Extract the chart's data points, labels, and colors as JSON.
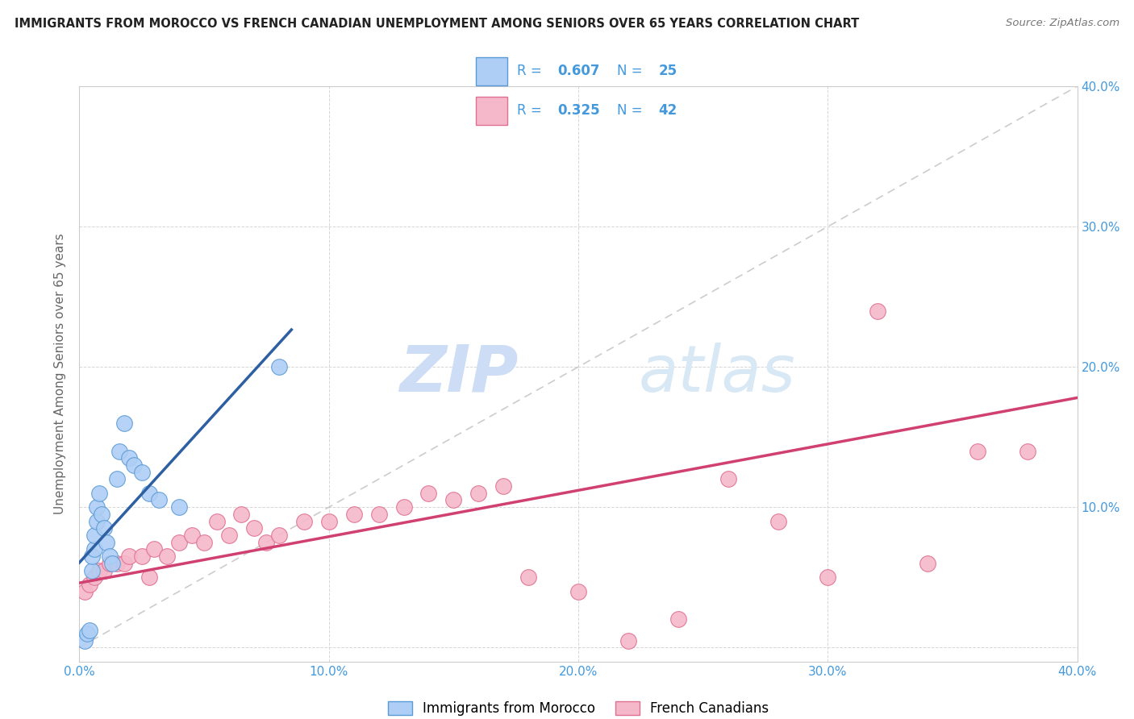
{
  "title": "IMMIGRANTS FROM MOROCCO VS FRENCH CANADIAN UNEMPLOYMENT AMONG SENIORS OVER 65 YEARS CORRELATION CHART",
  "source": "Source: ZipAtlas.com",
  "ylabel": "Unemployment Among Seniors over 65 years",
  "xlim": [
    0.0,
    0.4
  ],
  "ylim": [
    -0.01,
    0.4
  ],
  "xticks": [
    0.0,
    0.1,
    0.2,
    0.3,
    0.4
  ],
  "yticks": [
    0.0,
    0.1,
    0.2,
    0.3,
    0.4
  ],
  "xticklabels": [
    "0.0%",
    "10.0%",
    "20.0%",
    "30.0%",
    "40.0%"
  ],
  "yticklabels": [
    "",
    "10.0%",
    "20.0%",
    "30.0%",
    "40.0%"
  ],
  "morocco_R": 0.607,
  "morocco_N": 25,
  "french_R": 0.325,
  "french_N": 42,
  "morocco_color": "#aecef5",
  "morocco_edge_color": "#5b9bd5",
  "morocco_line_color": "#2e5fa3",
  "french_color": "#f5b8cb",
  "french_edge_color": "#e07090",
  "french_line_color": "#d04070",
  "trend_line_color": "#c0c0c0",
  "background_color": "#ffffff",
  "watermark_zip": "ZIP",
  "watermark_atlas": "atlas",
  "watermark_color": "#ccddf5",
  "morocco_x": [
    0.002,
    0.003,
    0.004,
    0.005,
    0.005,
    0.006,
    0.006,
    0.007,
    0.007,
    0.008,
    0.009,
    0.01,
    0.011,
    0.012,
    0.013,
    0.015,
    0.016,
    0.018,
    0.02,
    0.022,
    0.025,
    0.028,
    0.032,
    0.04,
    0.08
  ],
  "morocco_y": [
    0.005,
    0.01,
    0.012,
    0.055,
    0.065,
    0.07,
    0.08,
    0.09,
    0.1,
    0.11,
    0.095,
    0.085,
    0.075,
    0.065,
    0.06,
    0.12,
    0.14,
    0.16,
    0.135,
    0.13,
    0.125,
    0.11,
    0.105,
    0.1,
    0.2
  ],
  "french_x": [
    0.002,
    0.004,
    0.006,
    0.008,
    0.01,
    0.012,
    0.015,
    0.018,
    0.02,
    0.025,
    0.028,
    0.03,
    0.035,
    0.04,
    0.045,
    0.05,
    0.055,
    0.06,
    0.065,
    0.07,
    0.075,
    0.08,
    0.09,
    0.1,
    0.11,
    0.12,
    0.13,
    0.14,
    0.15,
    0.16,
    0.17,
    0.18,
    0.2,
    0.22,
    0.24,
    0.26,
    0.28,
    0.3,
    0.32,
    0.34,
    0.36,
    0.38
  ],
  "french_y": [
    0.04,
    0.045,
    0.05,
    0.055,
    0.055,
    0.06,
    0.06,
    0.06,
    0.065,
    0.065,
    0.05,
    0.07,
    0.065,
    0.075,
    0.08,
    0.075,
    0.09,
    0.08,
    0.095,
    0.085,
    0.075,
    0.08,
    0.09,
    0.09,
    0.095,
    0.095,
    0.1,
    0.11,
    0.105,
    0.11,
    0.115,
    0.05,
    0.04,
    0.005,
    0.02,
    0.12,
    0.09,
    0.05,
    0.24,
    0.06,
    0.14,
    0.14
  ],
  "morocco_line_x": [
    0.0,
    0.085
  ],
  "french_line_x": [
    0.0,
    0.4
  ],
  "french_line_y_start": 0.046,
  "french_line_y_end": 0.178
}
